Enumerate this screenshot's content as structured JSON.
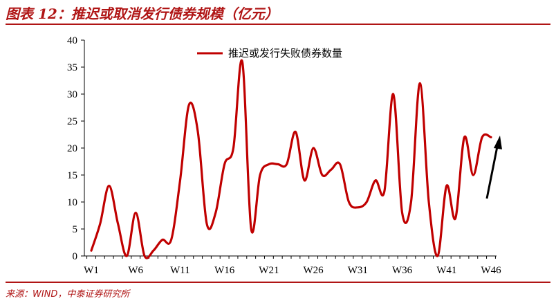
{
  "header": {
    "title": "图表 12：推迟或取消发行债券规模（亿元）"
  },
  "footer": {
    "source": "来源：WIND，中泰证券研究所"
  },
  "colors": {
    "accent": "#b01515",
    "series": "#c00000",
    "arrow": "#000000"
  },
  "chart_data": {
    "type": "line",
    "title": "",
    "xlabel": "",
    "ylabel": "",
    "ylim": [
      0,
      40
    ],
    "yticks": [
      0,
      5,
      10,
      15,
      20,
      25,
      30,
      35,
      40
    ],
    "x_tick_labels": [
      "W1",
      "W6",
      "W11",
      "W16",
      "W21",
      "W26",
      "W31",
      "W36",
      "W41",
      "W46"
    ],
    "legend_position": "top-center",
    "grid": false,
    "x": [
      "W1",
      "W2",
      "W3",
      "W4",
      "W5",
      "W6",
      "W7",
      "W8",
      "W9",
      "W10",
      "W11",
      "W12",
      "W13",
      "W14",
      "W15",
      "W16",
      "W17",
      "W18",
      "W19",
      "W20",
      "W21",
      "W22",
      "W23",
      "W24",
      "W25",
      "W26",
      "W27",
      "W28",
      "W29",
      "W30",
      "W31",
      "W32",
      "W33",
      "W34",
      "W35",
      "W36",
      "W37",
      "W38",
      "W39",
      "W40",
      "W41",
      "W42",
      "W43",
      "W44",
      "W45",
      "W46"
    ],
    "series": [
      {
        "name": "推迟或发行失败债券数量",
        "values": [
          1,
          6,
          13,
          6,
          0,
          8,
          0,
          1,
          3,
          3,
          14,
          28,
          23,
          6,
          8,
          17,
          20,
          36,
          5,
          15,
          17,
          17,
          17,
          23,
          14,
          20,
          15,
          16,
          17,
          10,
          9,
          10,
          14,
          12,
          30,
          8,
          10,
          32,
          10,
          0,
          13,
          7,
          22,
          15,
          22,
          22
        ]
      }
    ],
    "annotations": [
      {
        "type": "arrow",
        "meaning": "upward trend"
      }
    ]
  }
}
